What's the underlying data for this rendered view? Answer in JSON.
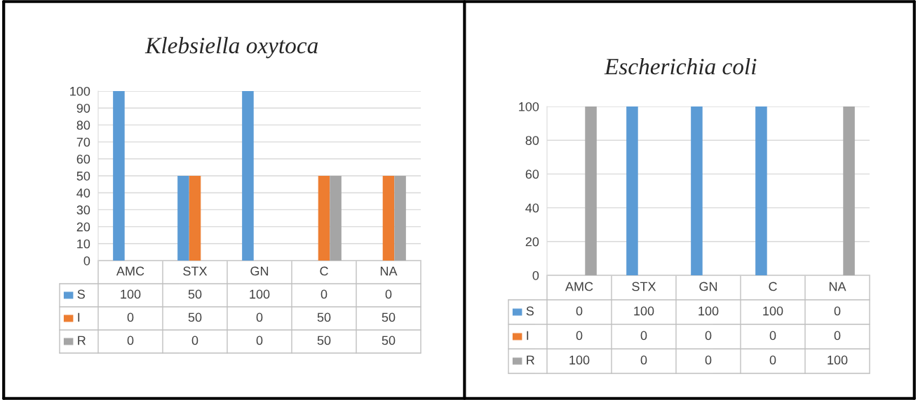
{
  "chart_data": [
    {
      "type": "bar",
      "title": "Klebsiella oxytoca",
      "categories": [
        "AMC",
        "STX",
        "GN",
        "C",
        "NA"
      ],
      "series": [
        {
          "name": "S",
          "color": "#5b9bd5",
          "values": [
            100,
            50,
            100,
            0,
            0
          ]
        },
        {
          "name": "I",
          "color": "#ed7d31",
          "values": [
            0,
            50,
            0,
            50,
            50
          ]
        },
        {
          "name": "R",
          "color": "#a5a5a5",
          "values": [
            0,
            0,
            0,
            50,
            50
          ]
        }
      ],
      "ylim": [
        0,
        100
      ],
      "yticks": [
        0,
        10,
        20,
        30,
        40,
        50,
        60,
        70,
        80,
        90,
        100
      ],
      "grid": "y",
      "data_labels": true,
      "legend": "bottom"
    },
    {
      "type": "bar",
      "title": "Escherichia coli",
      "categories": [
        "AMC",
        "STX",
        "GN",
        "C",
        "NA"
      ],
      "series": [
        {
          "name": "S",
          "color": "#5b9bd5",
          "values": [
            0,
            100,
            100,
            100,
            0
          ]
        },
        {
          "name": "I",
          "color": "#ed7d31",
          "values": [
            0,
            0,
            0,
            0,
            0
          ]
        },
        {
          "name": "R",
          "color": "#a5a5a5",
          "values": [
            100,
            0,
            0,
            0,
            100
          ]
        }
      ],
      "ylim": [
        0,
        100
      ],
      "yticks": [
        0,
        20,
        40,
        60,
        80,
        100
      ],
      "grid": "y",
      "data_labels": true,
      "legend": "bottom"
    }
  ]
}
